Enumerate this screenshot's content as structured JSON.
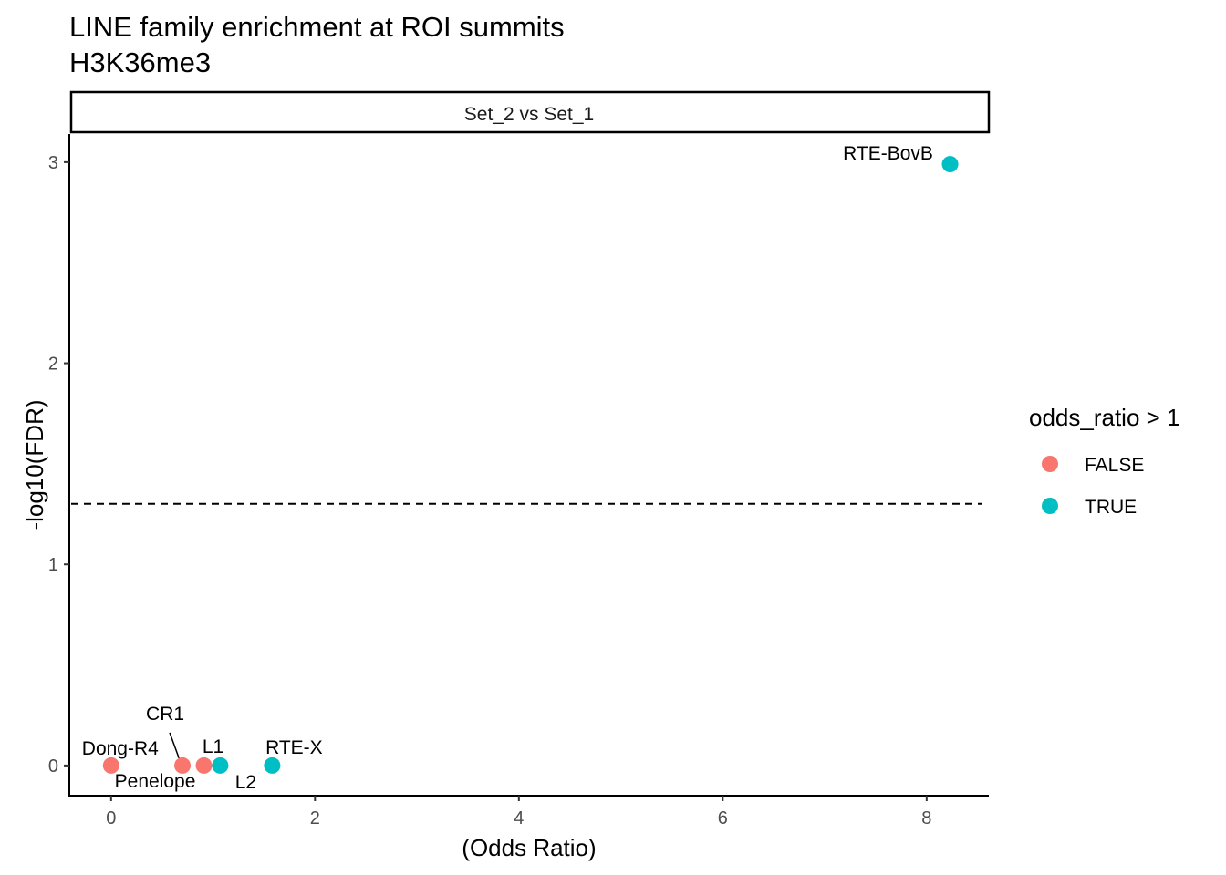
{
  "chart_data": {
    "type": "scatter",
    "title": "LINE family enrichment at ROI summits",
    "subtitle": "H3K36me3",
    "facet_label": "Set_2 vs Set_1",
    "xlabel": "(Odds Ratio)",
    "ylabel": "-log10(FDR)",
    "xlim": [
      -0.41,
      8.61
    ],
    "ylim": [
      -0.15,
      3.14
    ],
    "x_ticks": [
      0,
      2,
      4,
      6,
      8
    ],
    "y_ticks": [
      0,
      1,
      2,
      3
    ],
    "threshold_line": {
      "y": 1.301,
      "style": "dashed"
    },
    "legend": {
      "title": "odds_ratio > 1",
      "placement": "right",
      "entries": [
        {
          "label": "FALSE",
          "color": "#F8766D"
        },
        {
          "label": "TRUE",
          "color": "#00BFC4"
        }
      ]
    },
    "points": [
      {
        "label": "Dong-R4",
        "x": 0.0,
        "y": 0.0,
        "group": "FALSE"
      },
      {
        "label": "Penelope",
        "x": 0.7,
        "y": 0.0,
        "group": "FALSE"
      },
      {
        "label": "CR1",
        "x": 0.7,
        "y": 0.0,
        "group": "FALSE"
      },
      {
        "label": "L1",
        "x": 0.91,
        "y": 0.0,
        "group": "FALSE"
      },
      {
        "label": "L2",
        "x": 1.07,
        "y": 0.0,
        "group": "TRUE"
      },
      {
        "label": "RTE-X",
        "x": 1.58,
        "y": 0.0,
        "group": "TRUE"
      },
      {
        "label": "RTE-BovB",
        "x": 8.23,
        "y": 2.99,
        "group": "TRUE"
      }
    ]
  }
}
